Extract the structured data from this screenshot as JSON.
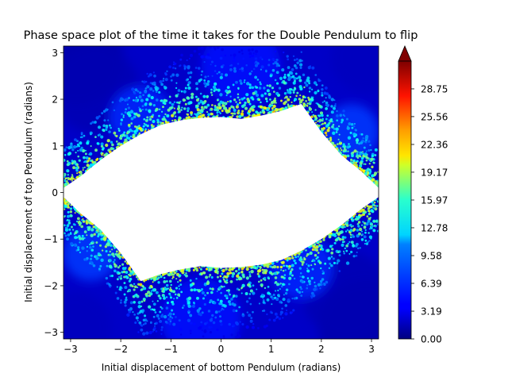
{
  "chart_data": {
    "type": "heatmap",
    "title": "Phase space plot of the time it takes for the Double Pendulum to flip",
    "xlabel": "Initial displacement of bottom Pendulum (radians)",
    "ylabel": "Initial displacement of top Pendulum (radians)",
    "xlim": [
      -3.14159,
      3.14159
    ],
    "ylim": [
      -3.14159,
      3.14159
    ],
    "xticks": [
      -3,
      -2,
      -1,
      0,
      1,
      2,
      3
    ],
    "yticks": [
      -3,
      -2,
      -1,
      0,
      1,
      2,
      3
    ],
    "grid": false,
    "colorbar": {
      "min": 0.0,
      "max": 31.94,
      "extend": "max",
      "colormap": "jet",
      "ticks": [
        0.0,
        3.19,
        6.39,
        9.58,
        12.78,
        15.97,
        19.17,
        22.36,
        25.56,
        28.75
      ],
      "tick_labels": [
        "0.00",
        "3.19",
        "6.39",
        "9.58",
        "12.78",
        "15.97",
        "19.17",
        "22.36",
        "25.56",
        "28.75"
      ],
      "extend_color": "#800000"
    },
    "no_flip_region": {
      "color": "#ffffff",
      "boundary_x": [
        -3.14,
        -2.8,
        -2.4,
        -2.0,
        -1.6,
        -1.2,
        -0.8,
        -0.4,
        0.0,
        0.4,
        0.8,
        1.2,
        1.6,
        2.0,
        2.4,
        2.8,
        3.14
      ],
      "boundary_upper_y": [
        0.1,
        0.35,
        0.7,
        1.0,
        1.25,
        1.45,
        1.55,
        1.6,
        1.62,
        1.58,
        1.65,
        1.75,
        1.9,
        1.3,
        0.8,
        0.45,
        0.1
      ],
      "boundary_lower_y": [
        -0.1,
        -0.45,
        -0.8,
        -1.3,
        -1.9,
        -1.75,
        -1.65,
        -1.58,
        -1.62,
        -1.6,
        -1.55,
        -1.45,
        -1.25,
        -1.0,
        -0.7,
        -0.35,
        -0.1
      ]
    }
  }
}
